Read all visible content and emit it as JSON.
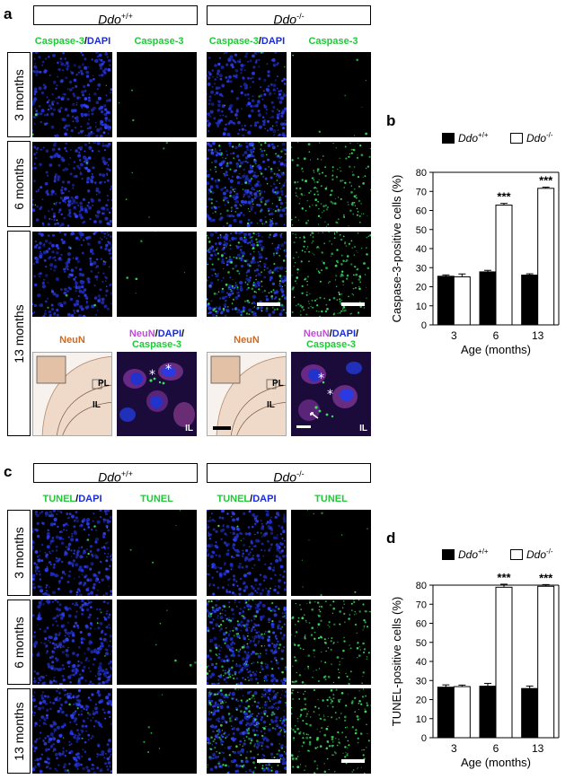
{
  "panels": {
    "a": {
      "label": "a",
      "left_genotype": "Ddo",
      "left_sup": "+/+",
      "right_genotype": "Ddo",
      "right_sup": "-/-",
      "col1_part1": "Caspase-3",
      "col1_sep": "/",
      "col1_part2": "DAPI",
      "col2": "Caspase-3",
      "rows": [
        "3 months",
        "6 months",
        "13 months"
      ],
      "neun": "NeuN",
      "merge_part1": "NeuN",
      "merge_sep1": "/",
      "merge_part2": "DAPI",
      "merge_sep2": "/",
      "merge_part3": "Caspase-3",
      "pl": "PL",
      "il": "IL",
      "il_small": "IL"
    },
    "b": {
      "label": "b"
    },
    "c": {
      "label": "c",
      "left_genotype": "Ddo",
      "left_sup": "+/+",
      "right_genotype": "Ddo",
      "right_sup": "-/-",
      "col1_part1": "TUNEL",
      "col1_sep": "/",
      "col1_part2": "DAPI",
      "col2": "TUNEL",
      "rows": [
        "3 months",
        "6 months",
        "13 months"
      ]
    },
    "d": {
      "label": "d"
    }
  },
  "colors": {
    "green": "#22c83a",
    "blue": "#1a2bd8",
    "magenta": "#c24bd8",
    "orange": "#d2691e"
  },
  "chart_data": [
    {
      "type": "bar",
      "ylabel": "Caspase-3-positive cells (%)",
      "xlabel": "Age (months)",
      "categories": [
        "3",
        "6",
        "13"
      ],
      "ylim": [
        0,
        80
      ],
      "yticks": [
        0,
        10,
        20,
        30,
        40,
        50,
        60,
        70,
        80
      ],
      "series": [
        {
          "name": "Ddo",
          "sup": "+/+",
          "color": "#000000",
          "values": [
            25.5,
            27.8,
            26.1
          ],
          "errors": [
            0.7,
            0.8,
            0.7
          ]
        },
        {
          "name": "Ddo",
          "sup": "-/-",
          "color": "#ffffff",
          "values": [
            25.2,
            62.8,
            71.6
          ],
          "errors": [
            1.5,
            0.9,
            0.6
          ]
        }
      ],
      "annotations": [
        {
          "category": "6",
          "text": "***"
        },
        {
          "category": "13",
          "text": "***"
        }
      ]
    },
    {
      "type": "bar",
      "ylabel": "TUNEL-positive cells (%)",
      "xlabel": "Age (months)",
      "categories": [
        "3",
        "6",
        "13"
      ],
      "ylim": [
        0,
        80
      ],
      "yticks": [
        0,
        10,
        20,
        30,
        40,
        50,
        60,
        70,
        80
      ],
      "series": [
        {
          "name": "Ddo",
          "sup": "+/+",
          "color": "#000000",
          "values": [
            26.5,
            27.0,
            25.8
          ],
          "errors": [
            1.2,
            1.5,
            1.3
          ]
        },
        {
          "name": "Ddo",
          "sup": "-/-",
          "color": "#ffffff",
          "values": [
            26.8,
            78.9,
            79.4
          ],
          "errors": [
            0.8,
            1.6,
            0.9
          ]
        }
      ],
      "annotations": [
        {
          "category": "6",
          "text": "***"
        },
        {
          "category": "13",
          "text": "***"
        }
      ]
    }
  ]
}
